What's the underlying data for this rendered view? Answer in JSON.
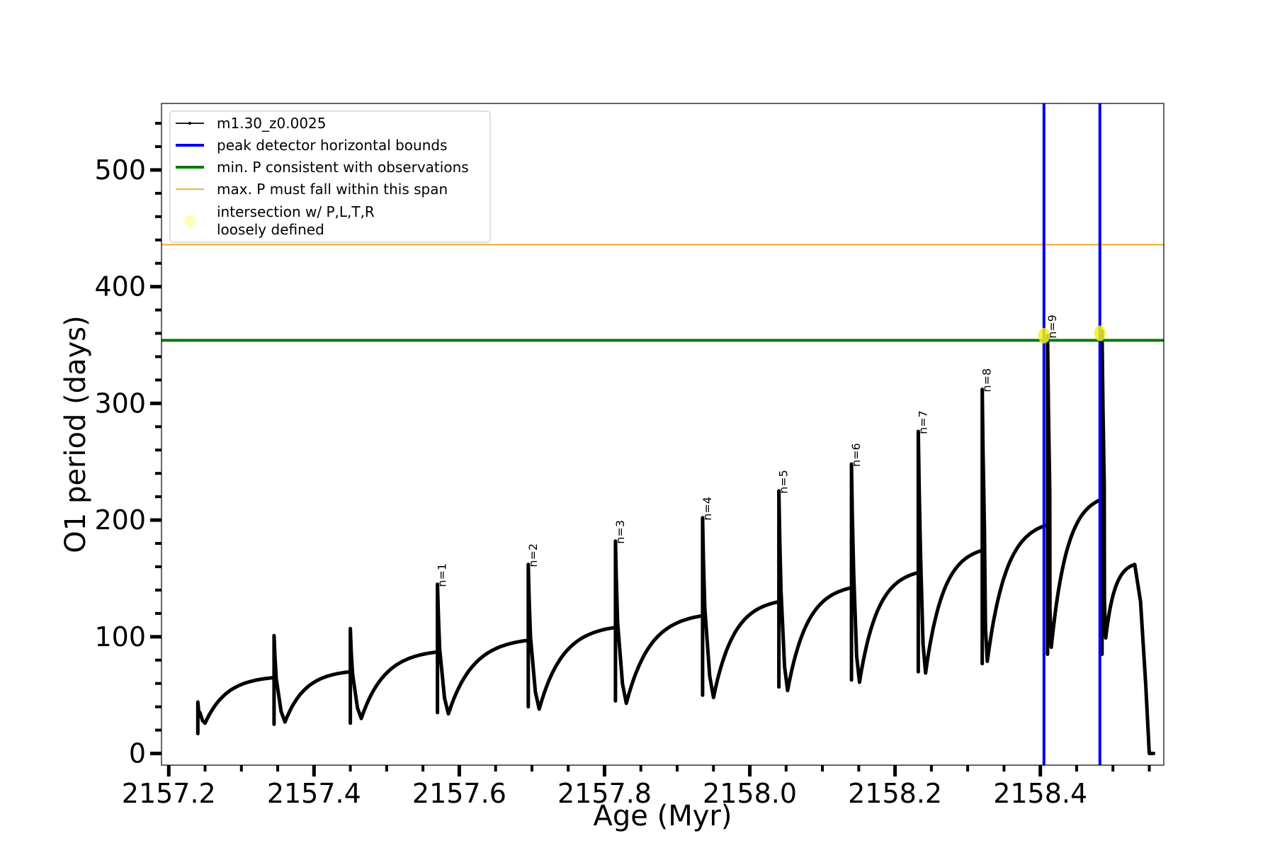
{
  "chart_data": {
    "type": "line",
    "title": "",
    "xlabel": "Age (Myr)",
    "ylabel": "O1 period (days)",
    "xlim": [
      2157.19,
      2158.57
    ],
    "ylim": [
      -10,
      557
    ],
    "x_ticks": [
      2157.2,
      2157.4,
      2157.6,
      2157.8,
      2158.0,
      2158.2,
      2158.4
    ],
    "x_tick_labels": [
      "2157.2",
      "2157.4",
      "2157.6",
      "2157.8",
      "2158.0",
      "2158.2",
      "2158.4"
    ],
    "y_ticks": [
      0,
      100,
      200,
      300,
      400,
      500
    ],
    "y_tick_labels": [
      "0",
      "100",
      "200",
      "300",
      "400",
      "500"
    ],
    "x_minor_step": 0.05,
    "y_minor_step": 20,
    "grid": false,
    "legend": {
      "placement": "upper-left",
      "entries": [
        {
          "label": "m1.30_z0.0025",
          "kind": "line-marker",
          "color": "#000000"
        },
        {
          "label": "peak detector horizontal bounds",
          "kind": "line",
          "color": "#0000ee"
        },
        {
          "label": "min. P consistent with observations",
          "kind": "line",
          "color": "#007a00"
        },
        {
          "label": "max. P must fall within this span",
          "kind": "line",
          "color": "#f5a623"
        },
        {
          "label": "intersection w/ P,L,T,R\nloosely defined",
          "kind": "dot",
          "color": "#ffff66"
        }
      ]
    },
    "series": [
      {
        "name": "m1.30_z0.0025",
        "color": "#000000",
        "cycles": [
          {
            "x_start": 2157.24,
            "x_end": 2157.345,
            "p_start": 17,
            "p_spike": 44,
            "p_min": 26,
            "x_min": 2157.25,
            "p_end": 65
          },
          {
            "x_start": 2157.345,
            "x_end": 2157.45,
            "p_start": 25,
            "p_spike": 101,
            "p_min": 27,
            "x_min": 2157.36,
            "p_end": 70
          },
          {
            "x_start": 2157.45,
            "x_end": 2157.57,
            "p_start": 26,
            "p_spike": 107,
            "p_min": 30,
            "x_min": 2157.465,
            "p_end": 87
          },
          {
            "x_start": 2157.57,
            "x_end": 2157.695,
            "p_start": 35,
            "p_spike": 145,
            "p_min": 34,
            "x_min": 2157.585,
            "p_end": 97
          },
          {
            "x_start": 2157.695,
            "x_end": 2157.815,
            "p_start": 40,
            "p_spike": 162,
            "p_min": 38,
            "x_min": 2157.71,
            "p_end": 108
          },
          {
            "x_start": 2157.815,
            "x_end": 2157.935,
            "p_start": 45,
            "p_spike": 182,
            "p_min": 43,
            "x_min": 2157.83,
            "p_end": 118
          },
          {
            "x_start": 2157.935,
            "x_end": 2158.04,
            "p_start": 50,
            "p_spike": 202,
            "p_min": 48,
            "x_min": 2157.95,
            "p_end": 130
          },
          {
            "x_start": 2158.04,
            "x_end": 2158.14,
            "p_start": 57,
            "p_spike": 225,
            "p_min": 54,
            "x_min": 2158.052,
            "p_end": 142
          },
          {
            "x_start": 2158.14,
            "x_end": 2158.232,
            "p_start": 63,
            "p_spike": 248,
            "p_min": 61,
            "x_min": 2158.151,
            "p_end": 155
          },
          {
            "x_start": 2158.232,
            "x_end": 2158.32,
            "p_start": 70,
            "p_spike": 276,
            "p_min": 69,
            "x_min": 2158.242,
            "p_end": 174
          },
          {
            "x_start": 2158.32,
            "x_end": 2158.41,
            "p_start": 77,
            "p_spike": 312,
            "p_min": 79,
            "x_min": 2158.327,
            "p_end": 196
          },
          {
            "x_start": 2158.41,
            "x_end": 2158.485,
            "p_start": 85,
            "p_spike": 358,
            "p_min": 91,
            "x_min": 2158.415,
            "p_end": 218
          },
          {
            "x_start": 2158.485,
            "x_end": 2158.53,
            "p_start": 85,
            "p_spike": 362,
            "p_min": 99,
            "x_min": 2158.49,
            "p_end": 162
          }
        ],
        "tail": [
          [
            2158.53,
            162
          ],
          [
            2158.538,
            130
          ],
          [
            2158.545,
            60
          ],
          [
            2158.548,
            25
          ],
          [
            2158.55,
            0
          ],
          [
            2158.556,
            0
          ]
        ]
      }
    ],
    "vertical_lines": [
      {
        "x": 2158.405,
        "color": "#0000ee"
      },
      {
        "x": 2158.482,
        "color": "#0000ee"
      }
    ],
    "horizontal_lines": [
      {
        "y": 354,
        "color": "#007a00"
      },
      {
        "y": 436,
        "color": "#f5a623"
      }
    ],
    "intersections": [
      {
        "x": 2158.405,
        "y": 358
      },
      {
        "x": 2158.482,
        "y": 360
      }
    ],
    "annotations": [
      {
        "text": "n=1",
        "x": 2157.57,
        "y": 145
      },
      {
        "text": "n=2",
        "x": 2157.695,
        "y": 162
      },
      {
        "text": "n=3",
        "x": 2157.815,
        "y": 182
      },
      {
        "text": "n=4",
        "x": 2157.935,
        "y": 202
      },
      {
        "text": "n=5",
        "x": 2158.04,
        "y": 225
      },
      {
        "text": "n=6",
        "x": 2158.14,
        "y": 248
      },
      {
        "text": "n=7",
        "x": 2158.232,
        "y": 276
      },
      {
        "text": "n=8",
        "x": 2158.32,
        "y": 312
      },
      {
        "text": "n=9",
        "x": 2158.41,
        "y": 358
      }
    ]
  }
}
